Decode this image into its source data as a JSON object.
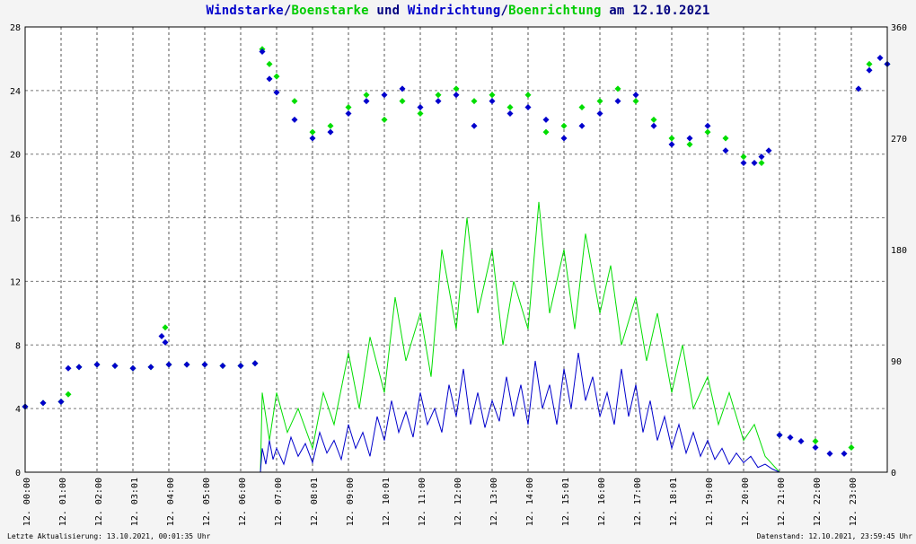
{
  "title": {
    "part1": "Windstarke",
    "sep1": "/",
    "part2": "Boenstarke",
    "mid": " und ",
    "part3": "Windrichtung",
    "sep2": "/",
    "part4": "Boenrichtung",
    "suffix": " am 12.10.2021"
  },
  "footer": {
    "left": "Letzte Aktualisierung: 13.10.2021, 00:01:35 Uhr",
    "right": "Datenstand: 12.10.2021, 23:59:45 Uhr"
  },
  "colors": {
    "wind": "#0000cc",
    "gust": "#00dd00",
    "title_dark": "#000080"
  },
  "chart_data": {
    "type": "line",
    "x_unit": "hours",
    "xlim": [
      0,
      24
    ],
    "ylim_left": [
      0,
      28
    ],
    "ylim_right": [
      0,
      360
    ],
    "yticks_left": [
      0,
      4,
      8,
      12,
      16,
      20,
      24,
      28
    ],
    "yticks_right": [
      0,
      90,
      180,
      270,
      360
    ],
    "xtick_labels": [
      "12. 00:00",
      "12. 01:00",
      "12. 02:00",
      "12. 03:01",
      "12. 04:00",
      "12. 05:00",
      "12. 06:00",
      "12. 07:00",
      "12. 08:01",
      "12. 09:00",
      "12. 10:01",
      "12. 11:00",
      "12. 12:00",
      "12. 13:00",
      "12. 14:00",
      "12. 15:01",
      "12. 16:00",
      "12. 17:00",
      "12. 18:01",
      "12. 19:00",
      "12. 20:00",
      "12. 21:00",
      "12. 22:00",
      "12. 23:00"
    ],
    "grid": true,
    "series": [
      {
        "name": "Windstarke",
        "axis": "left",
        "kind": "line",
        "x": [
          0.0,
          6.55,
          6.6,
          6.7,
          6.8,
          6.9,
          7.0,
          7.2,
          7.4,
          7.6,
          7.8,
          8.0,
          8.2,
          8.4,
          8.6,
          8.8,
          9.0,
          9.2,
          9.4,
          9.6,
          9.8,
          10.0,
          10.2,
          10.4,
          10.6,
          10.8,
          11.0,
          11.2,
          11.4,
          11.6,
          11.8,
          12.0,
          12.2,
          12.4,
          12.6,
          12.8,
          13.0,
          13.2,
          13.4,
          13.6,
          13.8,
          14.0,
          14.2,
          14.4,
          14.6,
          14.8,
          15.0,
          15.2,
          15.4,
          15.6,
          15.8,
          16.0,
          16.2,
          16.4,
          16.6,
          16.8,
          17.0,
          17.2,
          17.4,
          17.6,
          17.8,
          18.0,
          18.2,
          18.4,
          18.6,
          18.8,
          19.0,
          19.2,
          19.4,
          19.6,
          19.8,
          20.0,
          20.2,
          20.4,
          20.6,
          20.8,
          21.0,
          21.5,
          22.0,
          22.5,
          23.0,
          23.3
        ],
        "y": [
          0,
          0,
          1.5,
          0.5,
          2.0,
          0.8,
          1.5,
          0.5,
          2.2,
          1.0,
          1.8,
          0.6,
          2.5,
          1.2,
          2.0,
          0.8,
          3.0,
          1.5,
          2.5,
          1.0,
          3.5,
          2.0,
          4.5,
          2.5,
          3.8,
          2.2,
          5.0,
          3.0,
          4.0,
          2.5,
          5.5,
          3.5,
          6.5,
          3.0,
          5.0,
          2.8,
          4.5,
          3.2,
          6.0,
          3.5,
          5.5,
          3.0,
          7.0,
          4.0,
          5.5,
          3.0,
          6.5,
          4.0,
          7.5,
          4.5,
          6.0,
          3.5,
          5.0,
          3.0,
          6.5,
          3.5,
          5.5,
          2.5,
          4.5,
          2.0,
          3.5,
          1.5,
          3.0,
          1.2,
          2.5,
          1.0,
          2.0,
          0.8,
          1.5,
          0.5,
          1.2,
          0.6,
          1.0,
          0.3,
          0.5,
          0.2,
          0,
          0,
          0,
          0,
          0,
          0
        ]
      },
      {
        "name": "Boenstarke",
        "axis": "left",
        "kind": "line",
        "x": [
          0.0,
          6.55,
          6.6,
          6.8,
          7.0,
          7.3,
          7.6,
          8.0,
          8.3,
          8.6,
          9.0,
          9.3,
          9.6,
          10.0,
          10.3,
          10.6,
          11.0,
          11.3,
          11.6,
          12.0,
          12.3,
          12.6,
          13.0,
          13.3,
          13.6,
          14.0,
          14.3,
          14.6,
          15.0,
          15.3,
          15.6,
          16.0,
          16.3,
          16.6,
          17.0,
          17.3,
          17.6,
          18.0,
          18.3,
          18.6,
          19.0,
          19.3,
          19.6,
          20.0,
          20.3,
          20.6,
          21.0,
          21.5,
          22.0,
          22.5,
          23.0,
          23.3
        ],
        "y": [
          0,
          0,
          5.0,
          2.0,
          5.0,
          2.5,
          4.0,
          1.5,
          5.0,
          3.0,
          7.5,
          4.0,
          8.5,
          5.0,
          11.0,
          7.0,
          10.0,
          6.0,
          14.0,
          9.0,
          16.0,
          10.0,
          14.0,
          8.0,
          12.0,
          9.0,
          17.0,
          10.0,
          14.0,
          9.0,
          15.0,
          10.0,
          13.0,
          8.0,
          11.0,
          7.0,
          10.0,
          5.0,
          8.0,
          4.0,
          6.0,
          3.0,
          5.0,
          2.0,
          3.0,
          1.0,
          0,
          0,
          0,
          0,
          0,
          0
        ]
      },
      {
        "name": "Windrichtung",
        "axis": "right",
        "kind": "points",
        "x": [
          0.0,
          0.5,
          1.0,
          1.2,
          1.5,
          2.0,
          2.5,
          3.0,
          3.5,
          3.8,
          3.9,
          4.0,
          4.5,
          5.0,
          5.5,
          6.0,
          6.4,
          6.6,
          6.8,
          7.0,
          7.5,
          8.0,
          8.5,
          9.0,
          9.5,
          10.0,
          10.5,
          11.0,
          11.5,
          12.0,
          12.5,
          13.0,
          13.5,
          14.0,
          14.5,
          15.0,
          15.5,
          16.0,
          16.5,
          17.0,
          17.5,
          18.0,
          18.5,
          19.0,
          19.5,
          20.0,
          20.3,
          20.5,
          20.7,
          21.0,
          21.3,
          21.6,
          22.0,
          22.4,
          22.8,
          23.2,
          23.5,
          23.8,
          24.0
        ],
        "y": [
          53,
          56,
          57,
          84,
          85,
          87,
          86,
          84,
          85,
          110,
          105,
          87,
          87,
          87,
          86,
          86,
          88,
          340,
          318,
          307,
          285,
          270,
          275,
          290,
          300,
          305,
          310,
          295,
          300,
          305,
          280,
          300,
          290,
          295,
          285,
          270,
          280,
          290,
          300,
          305,
          280,
          265,
          270,
          280,
          260,
          250,
          250,
          255,
          260,
          30,
          28,
          25,
          20,
          15,
          15,
          310,
          325,
          335,
          330
        ]
      },
      {
        "name": "Boenrichtung",
        "axis": "right",
        "kind": "points",
        "x": [
          0.0,
          0.5,
          1.0,
          1.2,
          1.5,
          2.0,
          2.5,
          3.0,
          3.5,
          3.9,
          4.0,
          4.5,
          5.0,
          5.5,
          6.0,
          6.4,
          6.6,
          6.8,
          7.0,
          7.5,
          8.0,
          8.5,
          9.0,
          9.5,
          10.0,
          10.5,
          11.0,
          11.5,
          12.0,
          12.5,
          13.0,
          13.5,
          14.0,
          14.5,
          15.0,
          15.5,
          16.0,
          16.5,
          17.0,
          17.5,
          18.0,
          18.5,
          19.0,
          19.5,
          20.0,
          20.5,
          21.0,
          22.0,
          23.0,
          23.5,
          24.0
        ],
        "y": [
          53,
          56,
          57,
          63,
          85,
          87,
          86,
          84,
          85,
          117,
          87,
          87,
          87,
          86,
          86,
          88,
          342,
          330,
          320,
          300,
          275,
          280,
          295,
          305,
          285,
          300,
          290,
          305,
          310,
          300,
          305,
          295,
          305,
          275,
          280,
          295,
          300,
          310,
          300,
          285,
          270,
          265,
          275,
          270,
          255,
          250,
          30,
          25,
          20,
          330,
          330
        ]
      }
    ]
  }
}
